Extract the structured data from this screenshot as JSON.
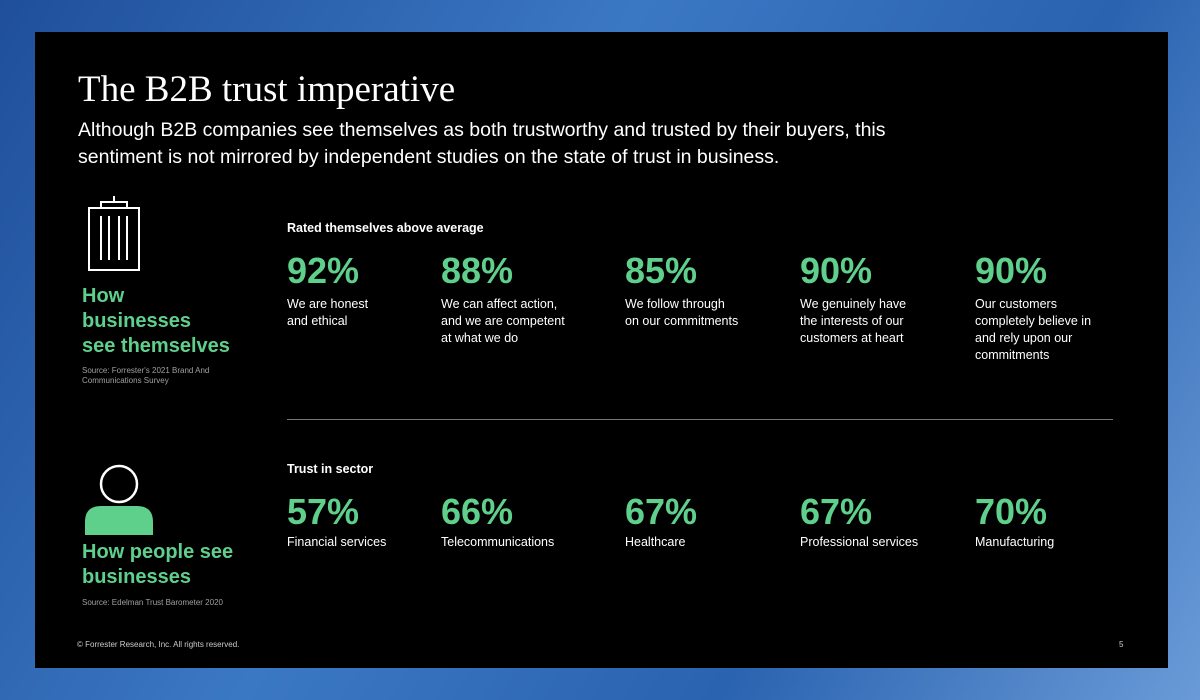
{
  "title": "The B2B trust imperative",
  "subtitle": [
    "Although B2B companies see themselves as both trustworthy and trusted by their buyers, this",
    "sentiment is not mirrored by independent studies on the state of trust in business."
  ],
  "sections": [
    {
      "heading": [
        "How",
        "businesses",
        "see themselves"
      ],
      "source": [
        "Source: Forrester's 2021 Brand And",
        "Communications Survey"
      ],
      "label": "Rated themselves above average",
      "stats": [
        {
          "value": "92%",
          "description": [
            "We are honest",
            "and ethical"
          ]
        },
        {
          "value": "88%",
          "description": [
            "We can affect action,",
            "and we are competent",
            "at what we do"
          ]
        },
        {
          "value": "85%",
          "description": [
            "We follow through",
            "on our commitments"
          ]
        },
        {
          "value": "90%",
          "description": [
            "We genuinely have",
            "the interests of our",
            "customers at heart"
          ]
        },
        {
          "value": "90%",
          "description": [
            "Our customers",
            "completely believe in",
            "and rely upon our",
            "commitments"
          ]
        }
      ]
    },
    {
      "heading": [
        "How people see",
        "businesses"
      ],
      "source": [
        "Source: Edelman Trust Barometer 2020"
      ],
      "label": "Trust in sector",
      "stats": [
        {
          "value": "57%",
          "description": [
            "Financial services"
          ]
        },
        {
          "value": "66%",
          "description": [
            "Telecommunications"
          ]
        },
        {
          "value": "67%",
          "description": [
            "Healthcare"
          ]
        },
        {
          "value": "67%",
          "description": [
            "Professional services"
          ]
        },
        {
          "value": "70%",
          "description": [
            "Manufacturing"
          ]
        }
      ]
    }
  ],
  "footer": {
    "copyright": "© Forrester Research, Inc. All rights reserved.",
    "page": "5"
  }
}
